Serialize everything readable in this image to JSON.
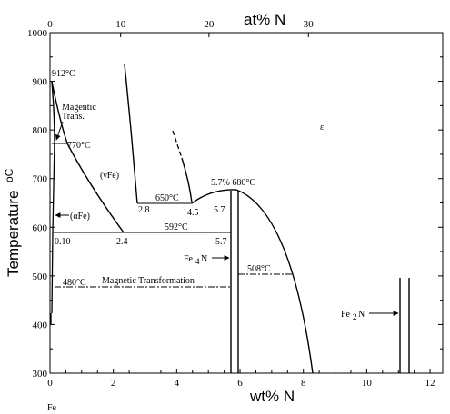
{
  "chart_data": {
    "type": "phase-diagram",
    "bottom_axis": {
      "label": "wt% N",
      "range": [
        0,
        12.4
      ],
      "ticks": [
        "0",
        "2",
        "4",
        "6",
        "8",
        "10",
        "12"
      ],
      "tick_values": [
        0,
        2,
        4,
        6,
        8,
        10,
        12
      ]
    },
    "top_axis": {
      "label": "at% N",
      "ticks": [
        "0",
        "10",
        "20",
        "30"
      ],
      "tick_positions_wt": [
        0,
        2.23,
        5.02,
        8.16
      ]
    },
    "left_axis": {
      "label_main": "Temperature",
      "label_unit": "oC",
      "range": [
        300,
        1000
      ],
      "ticks": [
        "300",
        "400",
        "500",
        "600",
        "700",
        "800",
        "900",
        "1000"
      ],
      "tick_values": [
        300,
        400,
        500,
        600,
        700,
        800,
        900,
        1000
      ]
    },
    "element_label": "Fe",
    "annotations": {
      "t912": "912°C",
      "magnetic_1": "Magentic",
      "magnetic_2": "Trans.",
      "t770": "770°C",
      "gamma_fe": "(γFe)",
      "alpha_fe": "(αFe)",
      "epsilon": "ε",
      "t650": "650°C",
      "c2_8": "2.8",
      "c4_5": "4.5",
      "c5_7a": "5.7",
      "c5_7_680": "5.7% 680°C",
      "t592": "592°C",
      "c0_10": "0.10",
      "c2_4": "2.4",
      "c5_7b": "5.7",
      "fe4n_main": "Fe",
      "fe4n_sub": "4",
      "fe4n_end": "N",
      "t508": "508°C",
      "t480": "480°C",
      "mag_transformation": "Magnetic Transformation",
      "fe2n_main": "Fe",
      "fe2n_sub": "2",
      "fe2n_end": "N"
    }
  }
}
